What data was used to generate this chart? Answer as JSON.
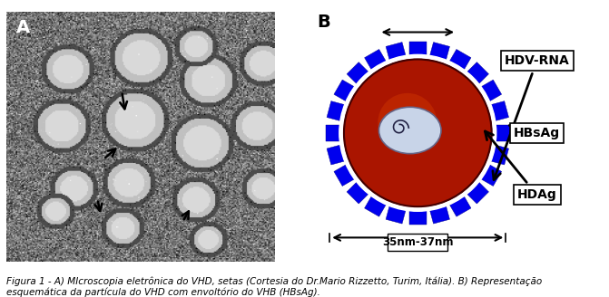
{
  "fig_width": 6.71,
  "fig_height": 3.28,
  "dpi": 100,
  "bg_color": "#ffffff",
  "label_A": "A",
  "label_B": "B",
  "caption": "Figura 1 - A) MIcroscopia eletrônica do VHD, setas (Cortesia do Dr.Mario Rizzetto, Turim, Itália). B) Representação\nesquemática da partícula do VHD com envoltório do VHB (HBsAg).",
  "outer_circle_color": "#0000cc",
  "outer_circle_edge": "#0000aa",
  "inner_circle_color_center": "#8b0000",
  "inner_circle_color_edge": "#cc2200",
  "nucleus_color": "#c8d4e8",
  "nucleus_edge": "#888888",
  "spike_color": "#0000ee",
  "spike_shadow": "#aaaacc",
  "label_hdv": "HDV-RNA",
  "label_hbs": "HBsAg",
  "label_hdag": "HDAg",
  "label_size": "35nm-37nm",
  "box_color": "#ffffff",
  "box_edge": "#000000",
  "arrow_color": "#000000",
  "caption_fontsize": 7.5,
  "label_fontsize": 10
}
